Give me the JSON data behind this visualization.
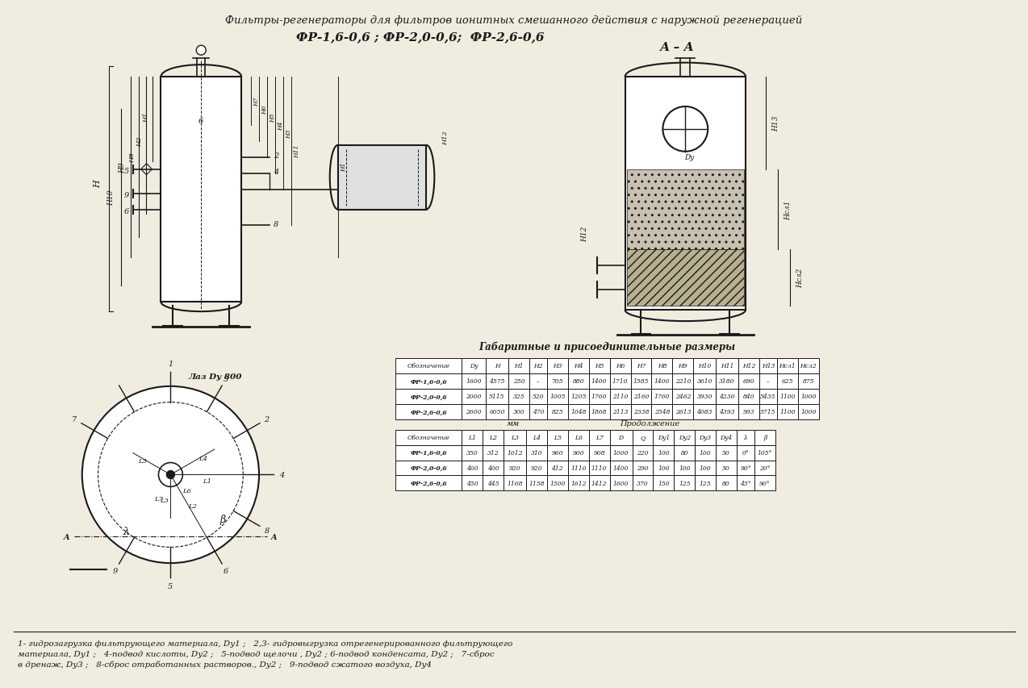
{
  "title_line1": "Фильтры-регенераторы для фильтров ионитных смешанного действия с наружной регенерацией",
  "title_line2": "ФР-1,6-0,6 ; ФР-2,0-0,6;  ФР-2,6-0,6",
  "section_label": "А – А",
  "table1_title": "Габаритные и присоединительные размеры",
  "table1_headers": [
    "Обозначение",
    "Dy",
    "H",
    "H1",
    "H2",
    "H3",
    "H4",
    "H5",
    "H6",
    "H7",
    "H8",
    "H9",
    "H10",
    "H11",
    "H12",
    "H13",
    "Hсл1",
    "Hсл2"
  ],
  "table1_rows": [
    [
      "ФР-1,6-0,6",
      "1600",
      "4575",
      "250",
      "–",
      "705",
      "880",
      "1400",
      "1710",
      "1585",
      "1400",
      "2210",
      "3610",
      "3180",
      "690",
      "–",
      "625",
      "875"
    ],
    [
      "ФР-2,0-0,6",
      "2000",
      "5115",
      "325",
      "520",
      "1005",
      "1205",
      "1760",
      "2110",
      "2160",
      "1760",
      "2462",
      "3930",
      "4230",
      "840",
      "5435",
      "1100",
      "1000"
    ],
    [
      "ФР-2,6-0,6",
      "2600",
      "6050",
      "300",
      "470",
      "825",
      "1048",
      "1868",
      "2113",
      "2338",
      "2548",
      "2613",
      "4083",
      "4393",
      "993",
      "5715",
      "1100",
      "1000"
    ]
  ],
  "table2_note_mm": "мм",
  "table2_note_prod": "Продолжение",
  "table2_headers": [
    "Обозначение",
    "L1",
    "L2",
    "L3",
    "L4",
    "L5",
    "L6",
    "L7",
    "D",
    "Q",
    "Dy1",
    "Dy2",
    "Dy3",
    "Dy4",
    "λ",
    "β"
  ],
  "table2_rows": [
    [
      "ФР-1,6-0,6",
      "350",
      "312",
      "1012",
      "310",
      "960",
      "900",
      "908",
      "1000",
      "220",
      "100",
      "80",
      "100",
      "50",
      "0°",
      "105°"
    ],
    [
      "ФР-2,0-0,6",
      "400",
      "400",
      "920",
      "920",
      "412",
      "1110",
      "1110",
      "1400",
      "290",
      "100",
      "100",
      "100",
      "50",
      "90°",
      "20°"
    ],
    [
      "ФР-2,6-0,6",
      "450",
      "445",
      "1168",
      "1158",
      "1500",
      "1612",
      "1412",
      "1600",
      "370",
      "150",
      "125",
      "125",
      "80",
      "45°",
      "90°"
    ]
  ],
  "footnote_line1": "1- гидрозагрузка фильтрующего материала, Dy1 ;   2,3- гидровыгрузка отрегенерированного фильтрующего",
  "footnote_line2": "материала, Dy1 ;   4-подвод кислоты, Dy2 ;   5-подвод щелочи , Dy2 ; 6-подвод конденсата, Dy2 ;   7-сброс",
  "footnote_line3": "в дренаж, Dy3 ;   8-сброс отработанных растворов., Dy2 ;   9-подвод сжатого воздуха, Dy4",
  "bg_color": "#f0ece0",
  "line_color": "#1a1a1a",
  "text_color": "#1a1a1a"
}
